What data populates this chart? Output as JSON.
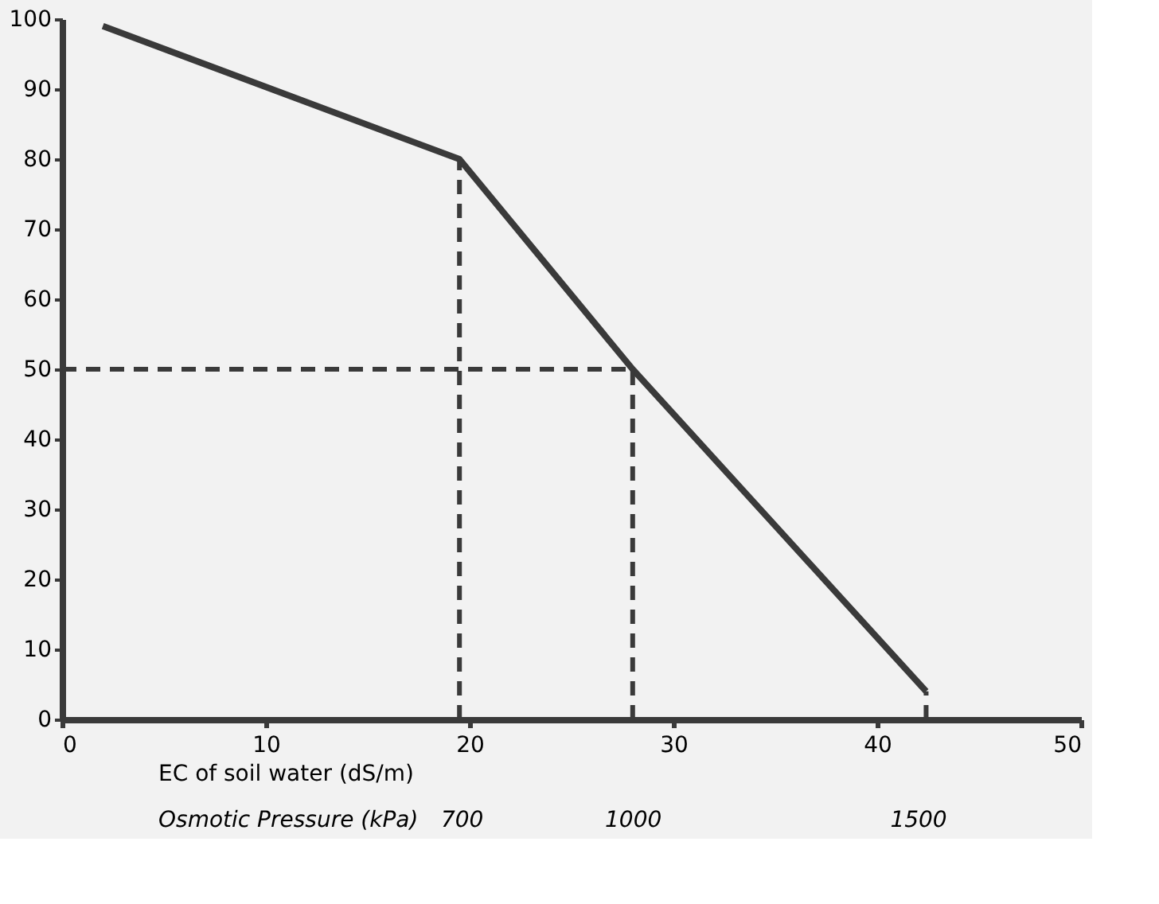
{
  "chart_data": {
    "type": "line",
    "xlabel": "EC of soil water (dS/m)",
    "x2label": "Osmotic Pressure (kPa)",
    "xlim": [
      0,
      50
    ],
    "xticks": [
      0,
      10,
      20,
      30,
      40,
      50
    ],
    "ylim": [
      0,
      100
    ],
    "yticks": [
      0,
      10,
      20,
      30,
      40,
      50,
      60,
      70,
      80,
      90,
      100
    ],
    "x2lim": [
      0,
      1786
    ],
    "x2ticks": [
      700,
      1000,
      1500
    ],
    "grid": false,
    "marker": "none",
    "series": [
      {
        "color": "#3a3a3a",
        "line_style": "solid",
        "x": [
          2,
          19.5,
          28,
          42.4
        ],
        "values": [
          99,
          80,
          50,
          4
        ]
      },
      {
        "color": "#3a3a3a",
        "line_style": "dashed",
        "x": [
          19.5,
          19.5
        ],
        "values": [
          0,
          80
        ]
      },
      {
        "color": "#3a3a3a",
        "line_style": "dashed",
        "x": [
          0,
          28
        ],
        "values": [
          50,
          50
        ]
      },
      {
        "color": "#3a3a3a",
        "line_style": "dashed",
        "x": [
          28,
          28
        ],
        "values": [
          0,
          50
        ]
      },
      {
        "color": "#3a3a3a",
        "line_style": "dashed",
        "x": [
          42.4,
          42.4
        ],
        "values": [
          0,
          4
        ]
      }
    ]
  }
}
